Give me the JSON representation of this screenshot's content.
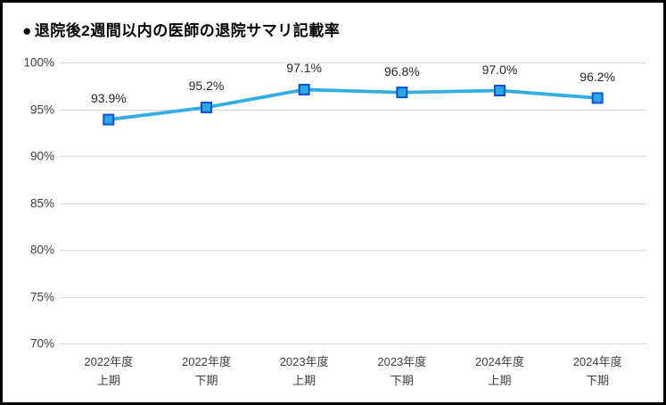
{
  "title": {
    "bullet": "●",
    "text": "退院後2週間以内の医師の退院サマリ記載率"
  },
  "chart_data": {
    "type": "line",
    "title": "● 退院後2週間以内の医師の退院サマリ記載率",
    "categories": [
      [
        "2022年度",
        "上期"
      ],
      [
        "2022年度",
        "下期"
      ],
      [
        "2023年度",
        "上期"
      ],
      [
        "2023年度",
        "下期"
      ],
      [
        "2024年度",
        "上期"
      ],
      [
        "2024年度",
        "下期"
      ]
    ],
    "values": [
      93.9,
      95.2,
      97.1,
      96.8,
      97.0,
      96.2
    ],
    "data_labels": [
      "93.9%",
      "95.2%",
      "97.1%",
      "96.8%",
      "97.0%",
      "96.2%"
    ],
    "xlabel": "",
    "ylabel": "",
    "ylim": [
      70,
      100
    ],
    "y_tick_values": [
      100,
      95,
      90,
      85,
      80,
      75,
      70
    ],
    "y_tick_labels": [
      "100%",
      "95%",
      "90%",
      "85%",
      "80%",
      "75%",
      "70%"
    ],
    "grid": true,
    "legend": false,
    "colors": {
      "line": "#33aee3",
      "marker_fill": "#29a8e0",
      "marker_border": "#0c52d9",
      "gridline": "#d9d9d9",
      "title_text": "#000000",
      "label_text": "#262626",
      "axis_text": "#404040",
      "frame_border": "#000000",
      "background": "#ffffff"
    }
  }
}
